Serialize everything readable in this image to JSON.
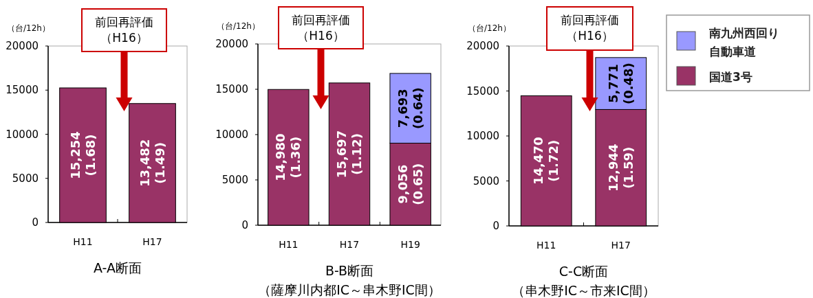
{
  "chart_data": [
    {
      "type": "bar",
      "stacked": true,
      "title": "A-A断面",
      "ylabel": "（台/12h）",
      "categories": [
        "H11",
        "H17"
      ],
      "series": [
        {
          "color": "#993366",
          "values": [
            15254,
            13482
          ],
          "value_labels": [
            "15,254 (1.68)",
            "13,482 (1.49)"
          ]
        }
      ],
      "ylim": [
        0,
        20000
      ],
      "yticks": [
        0,
        5000,
        10000,
        15000,
        20000
      ],
      "grid": false,
      "annotations": [
        "前回再評価（H16）"
      ]
    },
    {
      "type": "bar",
      "stacked": true,
      "title": "B-B断面",
      "subtitle": "（薩摩川内都IC～串木野IC間）",
      "ylabel": "（台/12h）",
      "categories": [
        "H11",
        "H17",
        "H19"
      ],
      "series": [
        {
          "color": "#993366",
          "values": [
            14980,
            15697,
            9056
          ],
          "value_labels": [
            "14,980 (1.36)",
            "15,697 (1.12)",
            "9,056 (0.65)"
          ]
        },
        {
          "color": "#9999ff",
          "values": [
            null,
            null,
            7693
          ],
          "value_labels": [
            null,
            null,
            "7,693 (0.64)"
          ]
        }
      ],
      "ylim": [
        0,
        20000
      ],
      "yticks": [
        0,
        5000,
        10000,
        15000,
        20000
      ],
      "grid": false,
      "annotations": [
        "前回再評価（H16）"
      ]
    },
    {
      "type": "bar",
      "stacked": true,
      "title": "C-C断面",
      "subtitle": "（串木野IC～市来IC間）",
      "ylabel": "（台/12h）",
      "categories": [
        "H11",
        "H17"
      ],
      "series": [
        {
          "name": "国道3号",
          "color": "#993366",
          "values": [
            14470,
            12944
          ],
          "value_labels": [
            "14,470 (1.72)",
            "12,944 (1.59)"
          ]
        },
        {
          "name": "南九州西回り自動車道",
          "color": "#9999ff",
          "values": [
            null,
            5771
          ],
          "value_labels": [
            null,
            "5,771 (0.48)"
          ]
        }
      ],
      "ylim": [
        0,
        20000
      ],
      "yticks": [
        0,
        5000,
        10000,
        15000,
        20000
      ],
      "grid": false,
      "legend": "right",
      "annotations": [
        "前回再評価（H16）"
      ]
    }
  ]
}
